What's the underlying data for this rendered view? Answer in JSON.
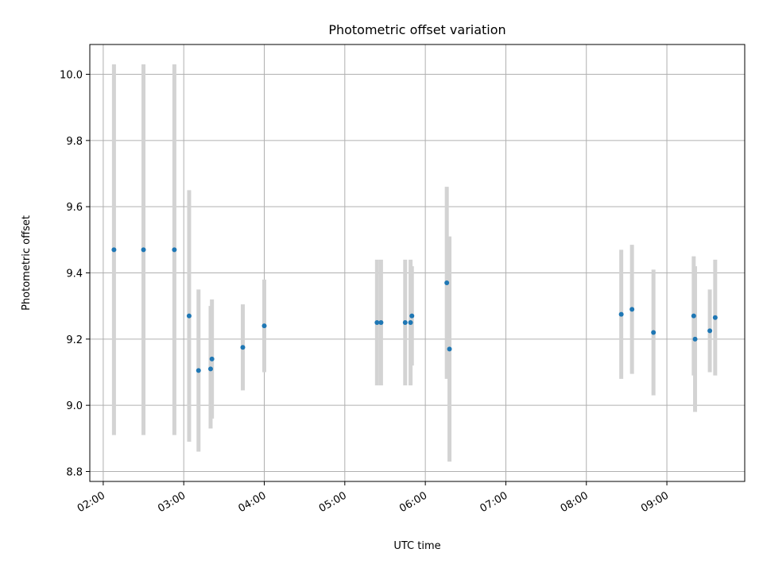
{
  "chart_data": {
    "type": "scatter",
    "title": "Photometric offset variation",
    "xlabel": "UTC time",
    "ylabel": "Photometric offset",
    "xlim": [
      "01:50",
      "09:58"
    ],
    "ylim": [
      8.77,
      10.09
    ],
    "x_ticks": [
      "02:00",
      "03:00",
      "04:00",
      "05:00",
      "06:00",
      "07:00",
      "08:00",
      "09:00"
    ],
    "y_ticks": [
      "8.8",
      "9.0",
      "9.2",
      "9.4",
      "9.6",
      "9.8",
      "10.0"
    ],
    "grid": true,
    "colors": {
      "point": "#1f77b4",
      "errorbar": "#d3d3d3",
      "grid": "#b0b0b0"
    },
    "points": [
      {
        "x": "02:08",
        "y": 9.47,
        "ylow": 8.91,
        "yhigh": 10.03
      },
      {
        "x": "02:30",
        "y": 9.47,
        "ylow": 8.91,
        "yhigh": 10.03
      },
      {
        "x": "02:53",
        "y": 9.47,
        "ylow": 8.91,
        "yhigh": 10.03
      },
      {
        "x": "03:04",
        "y": 9.27,
        "ylow": 8.89,
        "yhigh": 9.65
      },
      {
        "x": "03:11",
        "y": 9.105,
        "ylow": 8.86,
        "yhigh": 9.35
      },
      {
        "x": "03:20",
        "y": 9.11,
        "ylow": 8.93,
        "yhigh": 9.3
      },
      {
        "x": "03:21",
        "y": 9.14,
        "ylow": 8.96,
        "yhigh": 9.32
      },
      {
        "x": "03:44",
        "y": 9.175,
        "ylow": 9.045,
        "yhigh": 9.305
      },
      {
        "x": "04:00",
        "y": 9.24,
        "ylow": 9.1,
        "yhigh": 9.38
      },
      {
        "x": "05:24",
        "y": 9.25,
        "ylow": 9.06,
        "yhigh": 9.44
      },
      {
        "x": "05:27",
        "y": 9.25,
        "ylow": 9.06,
        "yhigh": 9.44
      },
      {
        "x": "05:45",
        "y": 9.25,
        "ylow": 9.06,
        "yhigh": 9.44
      },
      {
        "x": "05:49",
        "y": 9.25,
        "ylow": 9.06,
        "yhigh": 9.44
      },
      {
        "x": "05:50",
        "y": 9.27,
        "ylow": 9.12,
        "yhigh": 9.42
      },
      {
        "x": "06:16",
        "y": 9.37,
        "ylow": 9.08,
        "yhigh": 9.66
      },
      {
        "x": "06:18",
        "y": 9.17,
        "ylow": 8.83,
        "yhigh": 9.51
      },
      {
        "x": "08:26",
        "y": 9.275,
        "ylow": 9.08,
        "yhigh": 9.47
      },
      {
        "x": "08:34",
        "y": 9.29,
        "ylow": 9.095,
        "yhigh": 9.485
      },
      {
        "x": "08:50",
        "y": 9.22,
        "ylow": 9.03,
        "yhigh": 9.41
      },
      {
        "x": "09:20",
        "y": 9.27,
        "ylow": 9.09,
        "yhigh": 9.45
      },
      {
        "x": "09:21",
        "y": 9.2,
        "ylow": 8.98,
        "yhigh": 9.42
      },
      {
        "x": "09:32",
        "y": 9.225,
        "ylow": 9.1,
        "yhigh": 9.35
      },
      {
        "x": "09:36",
        "y": 9.265,
        "ylow": 9.09,
        "yhigh": 9.44
      }
    ]
  }
}
